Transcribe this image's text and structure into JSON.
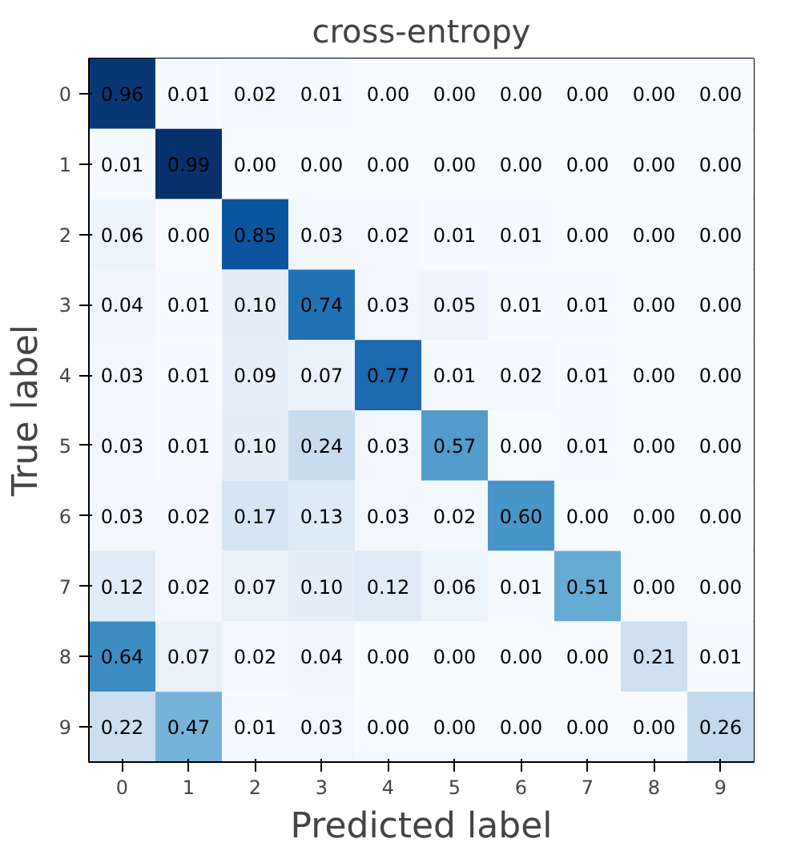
{
  "chart_data": {
    "type": "heatmap",
    "title": "cross-entropy",
    "xlabel": "Predicted label",
    "ylabel": "True label",
    "categories": [
      "0",
      "1",
      "2",
      "3",
      "4",
      "5",
      "6",
      "7",
      "8",
      "9"
    ],
    "y_categories": [
      "0",
      "1",
      "2",
      "3",
      "4",
      "5",
      "6",
      "7",
      "8",
      "9"
    ],
    "data_labels": true,
    "grid": false,
    "cell_labels": [
      [
        "0.96",
        "0.01",
        "0.02",
        "0.01",
        "0.00",
        "0.00",
        "0.00",
        "0.00",
        "0.00",
        "0.00"
      ],
      [
        "0.01",
        "0.99",
        "0.00",
        "0.00",
        "0.00",
        "0.00",
        "0.00",
        "0.00",
        "0.00",
        "0.00"
      ],
      [
        "0.06",
        "0.00",
        "0.85",
        "0.03",
        "0.02",
        "0.01",
        "0.01",
        "0.00",
        "0.00",
        "0.00"
      ],
      [
        "0.04",
        "0.01",
        "0.10",
        "0.74",
        "0.03",
        "0.05",
        "0.01",
        "0.01",
        "0.00",
        "0.00"
      ],
      [
        "0.03",
        "0.01",
        "0.09",
        "0.07",
        "0.77",
        "0.01",
        "0.02",
        "0.01",
        "0.00",
        "0.00"
      ],
      [
        "0.03",
        "0.01",
        "0.10",
        "0.24",
        "0.03",
        "0.57",
        "0.00",
        "0.01",
        "0.00",
        "0.00"
      ],
      [
        "0.03",
        "0.02",
        "0.17",
        "0.13",
        "0.03",
        "0.02",
        "0.60",
        "0.00",
        "0.00",
        "0.00"
      ],
      [
        "0.12",
        "0.02",
        "0.07",
        "0.10",
        "0.12",
        "0.06",
        "0.01",
        "0.51",
        "0.00",
        "0.00"
      ],
      [
        "0.64",
        "0.07",
        "0.02",
        "0.04",
        "0.00",
        "0.00",
        "0.00",
        "0.00",
        "0.21",
        "0.01"
      ],
      [
        "0.22",
        "0.47",
        "0.01",
        "0.03",
        "0.00",
        "0.00",
        "0.00",
        "0.00",
        "0.00",
        "0.26"
      ]
    ],
    "cells": [
      [
        0.96,
        0.01,
        0.02,
        0.01,
        0.0,
        0.0,
        0.0,
        0.0,
        0.0,
        0.0
      ],
      [
        0.01,
        0.99,
        0.0,
        0.0,
        0.0,
        0.0,
        0.0,
        0.0,
        0.0,
        0.0
      ],
      [
        0.06,
        0.0,
        0.85,
        0.03,
        0.02,
        0.01,
        0.01,
        0.0,
        0.0,
        0.0
      ],
      [
        0.04,
        0.01,
        0.1,
        0.74,
        0.03,
        0.05,
        0.01,
        0.01,
        0.0,
        0.0
      ],
      [
        0.03,
        0.01,
        0.09,
        0.07,
        0.77,
        0.01,
        0.02,
        0.01,
        0.0,
        0.0
      ],
      [
        0.03,
        0.01,
        0.1,
        0.24,
        0.03,
        0.57,
        0.0,
        0.01,
        0.0,
        0.0
      ],
      [
        0.03,
        0.02,
        0.17,
        0.13,
        0.03,
        0.02,
        0.6,
        0.0,
        0.0,
        0.0
      ],
      [
        0.12,
        0.02,
        0.07,
        0.1,
        0.12,
        0.06,
        0.01,
        0.51,
        0.0,
        0.0
      ],
      [
        0.64,
        0.07,
        0.02,
        0.04,
        0.0,
        0.0,
        0.0,
        0.0,
        0.21,
        0.01
      ],
      [
        0.22,
        0.47,
        0.01,
        0.03,
        0.0,
        0.0,
        0.0,
        0.0,
        0.0,
        0.26
      ]
    ]
  }
}
